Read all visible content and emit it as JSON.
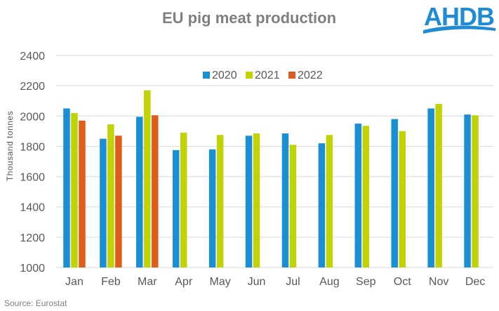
{
  "brand": {
    "logo_text": "AHDB",
    "logo_color": "#1f8bd6"
  },
  "source_text": "Source: Eurostat",
  "chart_data": {
    "type": "bar",
    "title": "EU pig meat production",
    "ylabel": "Thousand tonnes",
    "xlabel": "",
    "ylim": [
      1000,
      2400
    ],
    "yticks": [
      1000,
      1200,
      1400,
      1600,
      1800,
      2000,
      2200,
      2400
    ],
    "grid": true,
    "legend": "top-center",
    "categories": [
      "Jan",
      "Feb",
      "Mar",
      "Apr",
      "May",
      "Jun",
      "Jul",
      "Aug",
      "Sep",
      "Oct",
      "Nov",
      "Dec"
    ],
    "series": [
      {
        "name": "2020",
        "color": "#1a8fd4",
        "values": [
          2050,
          1850,
          1995,
          1775,
          1780,
          1870,
          1885,
          1820,
          1950,
          1980,
          2050,
          2010
        ]
      },
      {
        "name": "2021",
        "color": "#c2d305",
        "values": [
          2020,
          1945,
          2170,
          1890,
          1875,
          1885,
          1810,
          1875,
          1935,
          1900,
          2080,
          2005
        ]
      },
      {
        "name": "2022",
        "color": "#de5d1c",
        "values": [
          1970,
          1870,
          2005,
          null,
          null,
          null,
          null,
          null,
          null,
          null,
          null,
          null
        ]
      }
    ]
  }
}
